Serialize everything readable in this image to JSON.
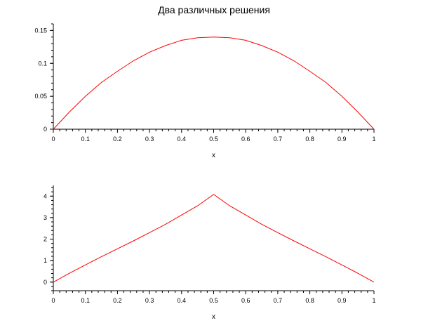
{
  "title": "Два различных решения",
  "chart_data": [
    {
      "type": "line",
      "xlabel": "x",
      "ylabel": "",
      "xlim": [
        0,
        1
      ],
      "ylim": [
        0,
        0.16
      ],
      "xticks": [
        "0",
        "0.1",
        "0.2",
        "0.3",
        "0.4",
        "0.5",
        "0.6",
        "0.7",
        "0.8",
        "0.9",
        "1"
      ],
      "yticks": [
        "0",
        "0.05",
        "0.1",
        "0.15"
      ],
      "grid": false,
      "series": [
        {
          "color": "#ff0000",
          "x": [
            0,
            0.05,
            0.1,
            0.15,
            0.2,
            0.25,
            0.3,
            0.35,
            0.4,
            0.45,
            0.5,
            0.55,
            0.6,
            0.65,
            0.7,
            0.75,
            0.8,
            0.85,
            0.9,
            0.95,
            1
          ],
          "y": [
            0,
            0.026,
            0.05,
            0.071,
            0.088,
            0.104,
            0.117,
            0.127,
            0.135,
            0.139,
            0.14,
            0.139,
            0.135,
            0.127,
            0.117,
            0.104,
            0.088,
            0.071,
            0.05,
            0.026,
            0
          ]
        }
      ]
    },
    {
      "type": "line",
      "xlabel": "x",
      "ylabel": "",
      "xlim": [
        0,
        1
      ],
      "ylim": [
        -0.4,
        4.5
      ],
      "xticks": [
        "0",
        "0.1",
        "0.2",
        "0.3",
        "0.4",
        "0.5",
        "0.6",
        "0.7",
        "0.8",
        "0.9",
        "1"
      ],
      "yticks": [
        "0",
        "1",
        "2",
        "3",
        "4"
      ],
      "grid": false,
      "series": [
        {
          "color": "#ff0000",
          "x": [
            0,
            0.05,
            0.1,
            0.15,
            0.2,
            0.25,
            0.3,
            0.35,
            0.4,
            0.45,
            0.5,
            0.55,
            0.6,
            0.65,
            0.7,
            0.75,
            0.8,
            0.85,
            0.9,
            0.95,
            1
          ],
          "y": [
            0,
            0.41,
            0.8,
            1.18,
            1.55,
            1.92,
            2.3,
            2.69,
            3.12,
            3.55,
            4.08,
            3.55,
            3.12,
            2.69,
            2.3,
            1.92,
            1.55,
            1.18,
            0.8,
            0.41,
            0
          ]
        }
      ]
    }
  ]
}
